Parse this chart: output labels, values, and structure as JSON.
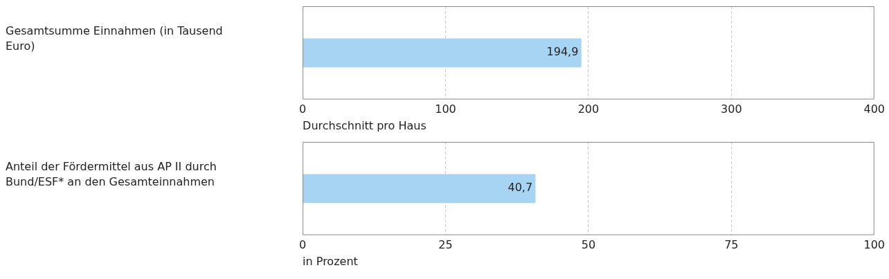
{
  "chart_data": [
    {
      "type": "bar",
      "orientation": "horizontal",
      "categories": [
        "Gesamtsumme Einnahmen (in Tausend Euro)"
      ],
      "values": [
        194.9
      ],
      "value_labels": [
        "194,9"
      ],
      "color": "#a8d4f4",
      "xlim": [
        0,
        400
      ],
      "xticks": [
        0,
        100,
        200,
        300,
        400
      ],
      "xlabel": "Durchschnitt pro Haus",
      "grid": "x"
    },
    {
      "type": "bar",
      "orientation": "horizontal",
      "categories": [
        "Anteil der Fördermittel aus AP II durch Bund/ESF* an den Gesamteinnahmen"
      ],
      "values": [
        40.7
      ],
      "value_labels": [
        "40,7"
      ],
      "color": "#a8d4f4",
      "xlim": [
        0,
        100
      ],
      "xticks": [
        0,
        25,
        50,
        75,
        100
      ],
      "xlabel": "in Prozent",
      "grid": "x"
    }
  ]
}
